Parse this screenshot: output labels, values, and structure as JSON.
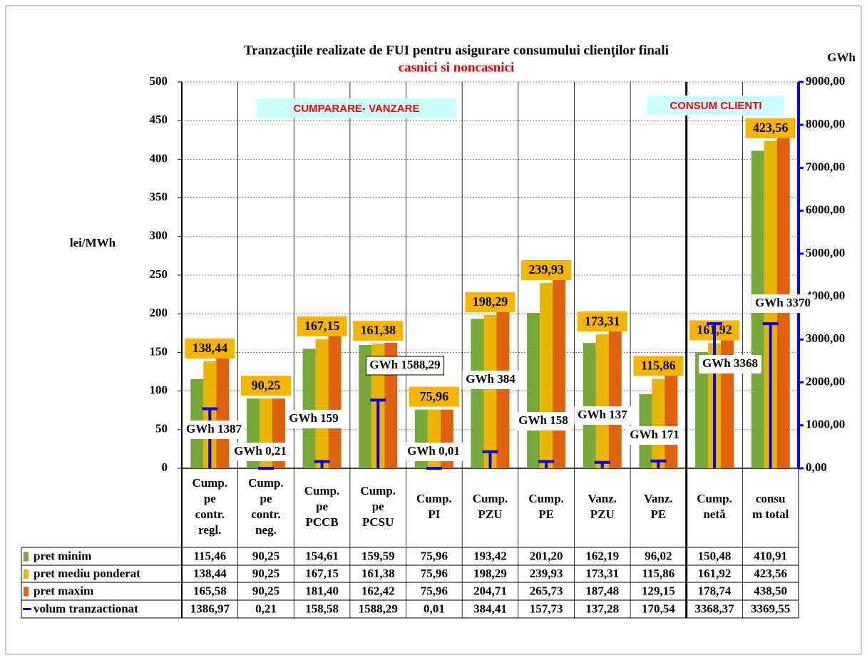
{
  "chart_data": {
    "type": "bar",
    "title": "Tranzacţiile realizate de FUI pentru asigurare consumului clienţilor finali",
    "subtitle": "casnici si noncasnici",
    "y_label": "lei/MWh",
    "y2_label": "GWh",
    "annotations": [
      "CUMPARARE- VANZARE",
      "CONSUM CLIENTI"
    ],
    "categories": [
      [
        "Cump.",
        "pe",
        "contr.",
        "regl."
      ],
      [
        "Cump.",
        "pe",
        "contr.",
        "neg."
      ],
      [
        "Cump.",
        "pe",
        "PCCB"
      ],
      [
        "Cump.",
        "pe",
        "PCSU"
      ],
      [
        "Cump.",
        "PI"
      ],
      [
        "Cump.",
        "PZU"
      ],
      [
        "Cump.",
        "PE"
      ],
      [
        "Vanz.",
        "PZU"
      ],
      [
        "Vanz.",
        "PE"
      ],
      [
        "Cump.",
        "netă"
      ],
      [
        "consu",
        "m total"
      ]
    ],
    "ylim": [
      0,
      500
    ],
    "yticks": [
      0,
      50,
      100,
      150,
      200,
      250,
      300,
      350,
      400,
      450,
      500
    ],
    "y2lim": [
      0,
      9000
    ],
    "y2ticks": [
      {
        "value": 0,
        "label": "0,00"
      },
      {
        "value": 1000,
        "label": "1000,00"
      },
      {
        "value": 2000,
        "label": "2000,00"
      },
      {
        "value": 3000,
        "label": "3000,00"
      },
      {
        "value": 4000,
        "label": "4000,00"
      },
      {
        "value": 5000,
        "label": "5000,00"
      },
      {
        "value": 6000,
        "label": "6000,00"
      },
      {
        "value": 7000,
        "label": "7000,00"
      },
      {
        "value": 8000,
        "label": "8000,00"
      },
      {
        "value": 9000,
        "label": "9000,00"
      }
    ],
    "grid": true,
    "series": [
      {
        "name": "pret minim",
        "color": "#77a83a",
        "values": [
          115.46,
          90.25,
          154.61,
          159.59,
          75.96,
          193.42,
          201.2,
          162.19,
          96.02,
          150.48,
          410.91
        ],
        "value_labels": [
          "115,46",
          "90,25",
          "154,61",
          "159,59",
          "75,96",
          "193,42",
          "201,20",
          "162,19",
          "96,02",
          "150,48",
          "410,91"
        ]
      },
      {
        "name": "pret mediu ponderat",
        "color": "#e8b400",
        "values": [
          138.44,
          90.25,
          167.15,
          161.38,
          75.96,
          198.29,
          239.93,
          173.31,
          115.86,
          161.92,
          423.56
        ],
        "value_labels": [
          "138,44",
          "90,25",
          "167,15",
          "161,38",
          "75,96",
          "198,29",
          "239,93",
          "173,31",
          "115,86",
          "161,92",
          "423,56"
        ]
      },
      {
        "name": "pret maxim",
        "color": "#e0620e",
        "values": [
          165.58,
          90.25,
          181.4,
          162.42,
          75.96,
          204.71,
          265.73,
          187.48,
          129.15,
          178.74,
          438.5
        ],
        "value_labels": [
          "165,58",
          "90,25",
          "181,40",
          "162,42",
          "75,96",
          "204,71",
          "265,73",
          "187,48",
          "129,15",
          "178,74",
          "438,50"
        ]
      },
      {
        "name": "volum tranzactionat",
        "color": "#0000ff",
        "axis": "y2",
        "values": [
          1386.97,
          0.21,
          158.58,
          1588.29,
          0.01,
          384.41,
          157.73,
          137.28,
          170.54,
          3368.37,
          3369.55
        ],
        "value_labels": [
          "1386,97",
          "0,21",
          "158,58",
          "1588,29",
          "0,01",
          "384,41",
          "157,73",
          "137,28",
          "170,54",
          "3368,37",
          "3369,55"
        ],
        "annotation_labels": [
          "GWh 1387",
          "GWh 0,21",
          "GWh 159",
          "GWh 1588,29",
          "GWh 0,01",
          "GWh 384",
          "GWh 158",
          "GWh 137",
          "GWh 171",
          "GWh 3368",
          "GWh 3370"
        ]
      }
    ]
  }
}
